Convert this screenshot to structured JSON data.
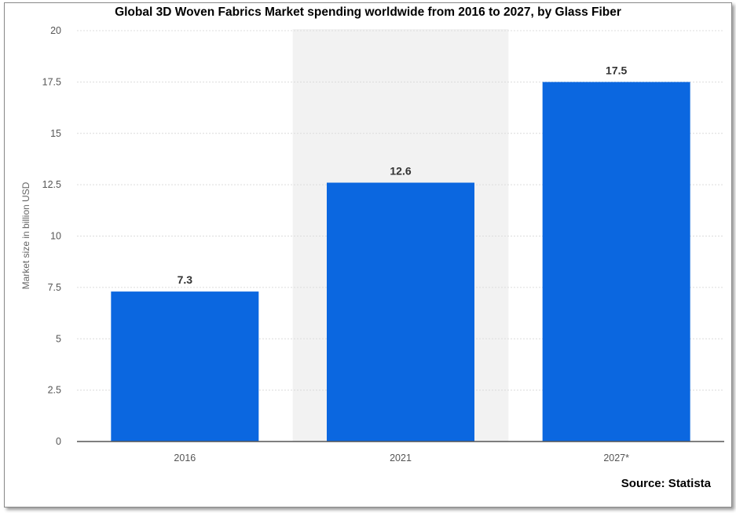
{
  "chart_data": {
    "type": "bar",
    "title": "Global 3D Woven Fabrics Market spending worldwide from 2016 to 2027, by Glass Fiber",
    "categories": [
      "2016",
      "2021",
      "2027*"
    ],
    "values": [
      7.3,
      12.6,
      17.5
    ],
    "data_labels": [
      "7.3",
      "12.6",
      "17.5"
    ],
    "ylabel": "Market size in billion USD",
    "xlabel": "",
    "ylim": [
      0,
      20
    ],
    "yticks": [
      "0",
      "2.5",
      "5",
      "7.5",
      "10",
      "12.5",
      "15",
      "17.5",
      "20"
    ],
    "ytick_values": [
      0,
      2.5,
      5,
      7.5,
      10,
      12.5,
      15,
      17.5,
      20
    ],
    "grid": true,
    "highlighted_category": "2021",
    "colors": {
      "bar": "#0b67e0",
      "highlight_band": "#f2f2f2",
      "grid": "#dcdcdc",
      "axis": "#555555"
    }
  },
  "source": "Source: Statista"
}
